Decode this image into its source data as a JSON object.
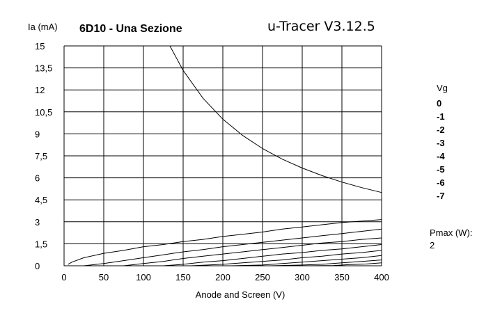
{
  "chart_data": {
    "type": "line",
    "title": "6D10 - Una Sezione",
    "subtitle": "u-Tracer V3.12.5",
    "ylabel": "Ia (mA)",
    "xlabel": "Anode and Screen (V)",
    "xlim": [
      0,
      400
    ],
    "ylim": [
      0,
      15
    ],
    "x_ticks": [
      "0",
      "50",
      "100",
      "150",
      "200",
      "250",
      "300",
      "350",
      "400"
    ],
    "y_ticks": [
      "0",
      "1,5",
      "3",
      "4,5",
      "6",
      "7,5",
      "9",
      "10,5",
      "12",
      "13,5",
      "15"
    ],
    "grid": true,
    "legend_title": "Vg",
    "legend_placement": "right",
    "legend_entries": [
      "0",
      "-1",
      "-2",
      "-3",
      "-4",
      "-5",
      "-6",
      "-7"
    ],
    "pmax_label": "Pmax (W):",
    "pmax_value": "2",
    "pmax_curve": {
      "name": "Pmax",
      "points": [
        [
          133.3,
          15
        ],
        [
          150,
          13.33
        ],
        [
          175,
          11.43
        ],
        [
          200,
          10
        ],
        [
          225,
          8.89
        ],
        [
          250,
          8
        ],
        [
          275,
          7.27
        ],
        [
          300,
          6.67
        ],
        [
          325,
          6.15
        ],
        [
          350,
          5.71
        ],
        [
          375,
          5.33
        ],
        [
          400,
          5
        ]
      ]
    },
    "series": [
      {
        "name": "0",
        "points": [
          [
            5,
            0.1
          ],
          [
            10,
            0.25
          ],
          [
            25,
            0.55
          ],
          [
            50,
            0.85
          ],
          [
            75,
            1.05
          ],
          [
            100,
            1.3
          ],
          [
            125,
            1.45
          ],
          [
            150,
            1.65
          ],
          [
            175,
            1.8
          ],
          [
            200,
            2.0
          ],
          [
            225,
            2.15
          ],
          [
            250,
            2.3
          ],
          [
            275,
            2.5
          ],
          [
            300,
            2.65
          ],
          [
            325,
            2.8
          ],
          [
            350,
            2.95
          ],
          [
            375,
            3.05
          ],
          [
            400,
            3.15
          ]
        ]
      },
      {
        "name": "-1",
        "points": [
          [
            25,
            0.0
          ],
          [
            50,
            0.15
          ],
          [
            75,
            0.35
          ],
          [
            100,
            0.55
          ],
          [
            125,
            0.75
          ],
          [
            150,
            0.95
          ],
          [
            175,
            1.1
          ],
          [
            200,
            1.3
          ],
          [
            225,
            1.45
          ],
          [
            250,
            1.6
          ],
          [
            275,
            1.75
          ],
          [
            300,
            1.9
          ],
          [
            325,
            2.05
          ],
          [
            350,
            2.2
          ],
          [
            375,
            2.35
          ],
          [
            400,
            2.5
          ]
        ]
      },
      {
        "name": "-2",
        "points": [
          [
            75,
            0.0
          ],
          [
            100,
            0.15
          ],
          [
            125,
            0.3
          ],
          [
            150,
            0.5
          ],
          [
            175,
            0.65
          ],
          [
            200,
            0.8
          ],
          [
            225,
            0.95
          ],
          [
            250,
            1.1
          ],
          [
            275,
            1.25
          ],
          [
            300,
            1.4
          ],
          [
            325,
            1.55
          ],
          [
            350,
            1.65
          ],
          [
            375,
            1.8
          ],
          [
            400,
            1.9
          ]
        ]
      },
      {
        "name": "-3",
        "points": [
          [
            125,
            0.0
          ],
          [
            150,
            0.1
          ],
          [
            175,
            0.25
          ],
          [
            200,
            0.35
          ],
          [
            225,
            0.5
          ],
          [
            250,
            0.65
          ],
          [
            275,
            0.8
          ],
          [
            300,
            0.9
          ],
          [
            325,
            1.05
          ],
          [
            350,
            1.15
          ],
          [
            375,
            1.3
          ],
          [
            400,
            1.45
          ]
        ]
      },
      {
        "name": "-4",
        "points": [
          [
            160,
            0.0
          ],
          [
            200,
            0.1
          ],
          [
            225,
            0.2
          ],
          [
            250,
            0.3
          ],
          [
            275,
            0.4
          ],
          [
            300,
            0.55
          ],
          [
            325,
            0.65
          ],
          [
            350,
            0.8
          ],
          [
            375,
            0.9
          ],
          [
            400,
            1.05
          ]
        ]
      },
      {
        "name": "-5",
        "points": [
          [
            210,
            0.0
          ],
          [
            250,
            0.05
          ],
          [
            275,
            0.15
          ],
          [
            300,
            0.25
          ],
          [
            325,
            0.35
          ],
          [
            350,
            0.45
          ],
          [
            375,
            0.55
          ],
          [
            400,
            0.7
          ]
        ]
      },
      {
        "name": "-6",
        "points": [
          [
            260,
            0.0
          ],
          [
            300,
            0.05
          ],
          [
            325,
            0.1
          ],
          [
            350,
            0.2
          ],
          [
            375,
            0.3
          ],
          [
            400,
            0.4
          ]
        ]
      },
      {
        "name": "-7",
        "points": [
          [
            300,
            0.0
          ],
          [
            340,
            0.02
          ],
          [
            360,
            0.08
          ],
          [
            380,
            0.12
          ],
          [
            400,
            0.2
          ]
        ]
      }
    ]
  }
}
